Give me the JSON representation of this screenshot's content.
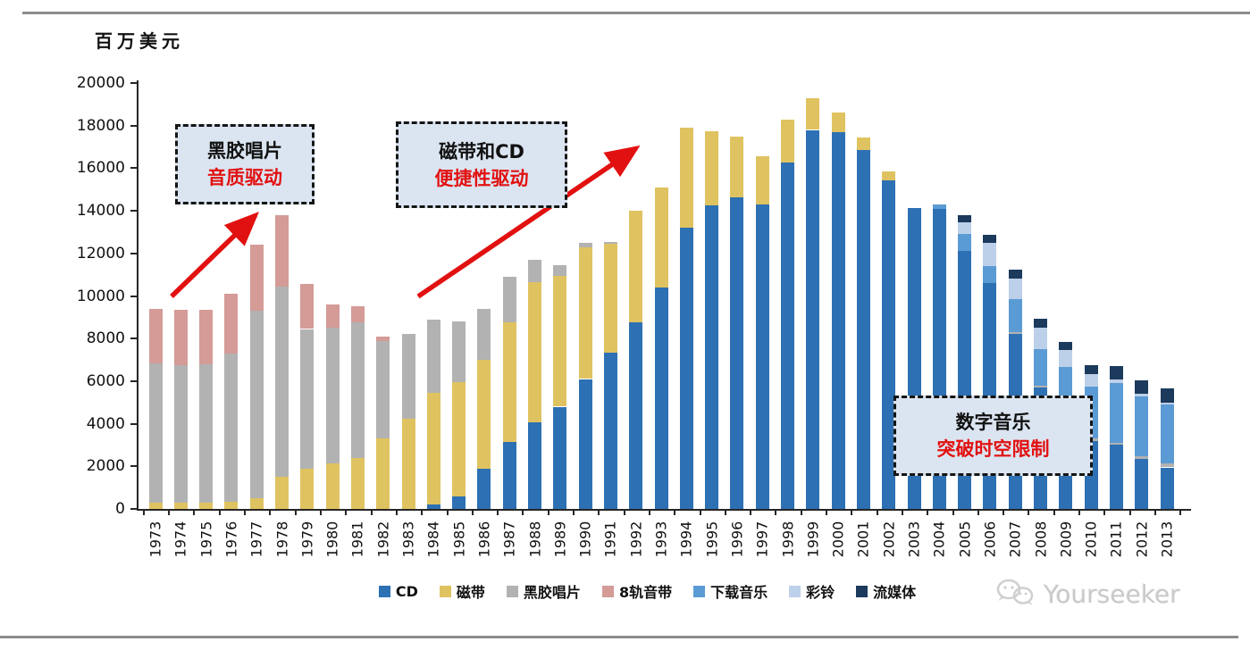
{
  "page": {
    "unit_label": "百万美元",
    "watermark_text": "Yourseeker"
  },
  "annotations": [
    {
      "line1": "黑胶唱片",
      "line2": "音质驱动"
    },
    {
      "line1": "磁带和CD",
      "line2": "便捷性驱动"
    },
    {
      "line1": "数字音乐",
      "line2": "突破时空限制"
    }
  ],
  "chart_data": {
    "type": "bar",
    "stacked": true,
    "title": "",
    "ylabel": "百万美元",
    "xlabel": "",
    "ylim": [
      0,
      20000
    ],
    "ytick_step": 2000,
    "grid": false,
    "legend_position": "bottom",
    "accent_red": "#e21111",
    "categories": [
      1973,
      1974,
      1975,
      1976,
      1977,
      1978,
      1979,
      1980,
      1981,
      1982,
      1983,
      1984,
      1985,
      1986,
      1987,
      1988,
      1989,
      1990,
      1991,
      1992,
      1993,
      1994,
      1995,
      1996,
      1997,
      1998,
      1999,
      2000,
      2001,
      2002,
      2003,
      2004,
      2005,
      2006,
      2007,
      2008,
      2009,
      2010,
      2011,
      2012,
      2013
    ],
    "series": [
      {
        "key": "cd",
        "name": "CD",
        "color": "#2d70b3",
        "values": [
          0,
          0,
          0,
          0,
          0,
          0,
          0,
          0,
          0,
          0,
          0,
          200,
          600,
          1900,
          3150,
          4050,
          4800,
          6100,
          7350,
          8750,
          10400,
          13200,
          14250,
          14650,
          14300,
          16250,
          17800,
          17700,
          16850,
          15450,
          14150,
          14100,
          12100,
          10600,
          8200,
          5700,
          4000,
          3200,
          3000,
          2350,
          1950
        ]
      },
      {
        "key": "cassette",
        "name": "磁带",
        "color": "#e0c361",
        "values": [
          300,
          300,
          300,
          350,
          500,
          1500,
          1900,
          2150,
          2400,
          3300,
          4250,
          5250,
          5350,
          5100,
          5600,
          6600,
          6150,
          6200,
          5100,
          5250,
          4700,
          4700,
          3500,
          2850,
          2250,
          2050,
          1500,
          900,
          600,
          400,
          0,
          0,
          0,
          0,
          0,
          0,
          0,
          0,
          0,
          0,
          0
        ]
      },
      {
        "key": "vinyl",
        "name": "黑胶唱片",
        "color": "#b2b2b2",
        "values": [
          6550,
          6450,
          6500,
          6950,
          8800,
          8950,
          6550,
          6350,
          6350,
          4600,
          3950,
          3450,
          2850,
          2400,
          2150,
          1050,
          500,
          200,
          80,
          0,
          0,
          0,
          0,
          0,
          0,
          0,
          0,
          0,
          0,
          0,
          0,
          0,
          0,
          0,
          100,
          100,
          100,
          100,
          120,
          140,
          170
        ]
      },
      {
        "key": "eight-track",
        "name": "8轨音带",
        "color": "#d49b97",
        "values": [
          2550,
          2600,
          2550,
          2800,
          3100,
          3350,
          2100,
          1100,
          750,
          200,
          0,
          0,
          0,
          0,
          0,
          0,
          0,
          0,
          0,
          0,
          0,
          0,
          0,
          0,
          0,
          0,
          0,
          0,
          0,
          0,
          0,
          0,
          0,
          0,
          0,
          0,
          0,
          0,
          0,
          0,
          0
        ]
      },
      {
        "key": "download",
        "name": "下载音乐",
        "color": "#5b9bd5",
        "values": [
          0,
          0,
          0,
          0,
          0,
          0,
          0,
          0,
          0,
          0,
          0,
          0,
          0,
          0,
          0,
          0,
          0,
          0,
          0,
          0,
          0,
          0,
          0,
          0,
          0,
          0,
          0,
          0,
          0,
          0,
          0,
          200,
          800,
          800,
          1550,
          1700,
          2550,
          2450,
          2800,
          2800,
          2800
        ]
      },
      {
        "key": "ringtone",
        "name": "彩铃",
        "color": "#bdd0e9",
        "values": [
          0,
          0,
          0,
          0,
          0,
          0,
          0,
          0,
          0,
          0,
          0,
          0,
          0,
          0,
          0,
          0,
          0,
          0,
          0,
          0,
          0,
          0,
          0,
          0,
          0,
          0,
          0,
          0,
          0,
          0,
          0,
          0,
          550,
          1100,
          950,
          1000,
          800,
          600,
          150,
          100,
          60
        ]
      },
      {
        "key": "streaming",
        "name": "流媒体",
        "color": "#1b3a5c",
        "values": [
          0,
          0,
          0,
          0,
          0,
          0,
          0,
          0,
          0,
          0,
          0,
          0,
          0,
          0,
          0,
          0,
          0,
          0,
          0,
          0,
          0,
          0,
          0,
          0,
          0,
          0,
          0,
          0,
          0,
          0,
          0,
          0,
          350,
          380,
          420,
          420,
          400,
          400,
          630,
          650,
          700
        ]
      }
    ]
  }
}
